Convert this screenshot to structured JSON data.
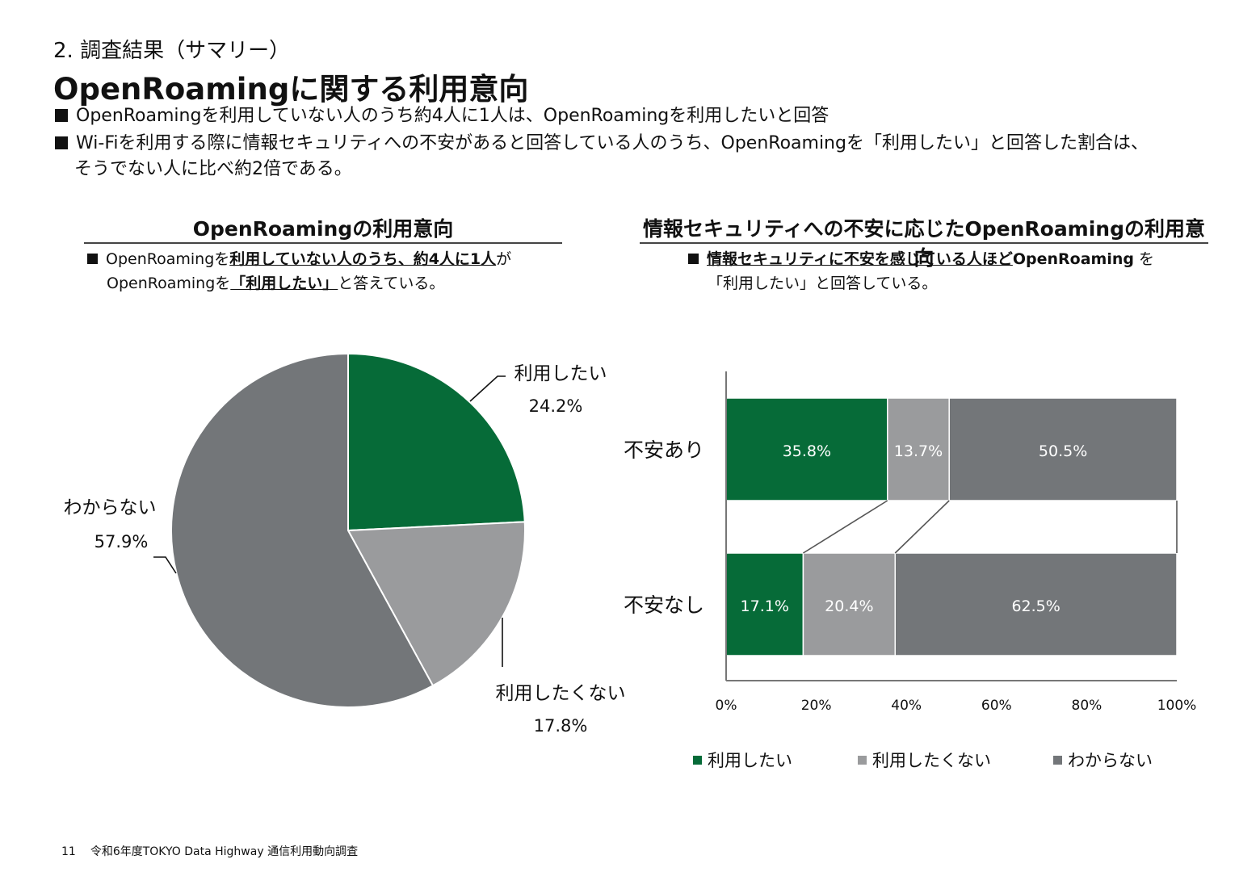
{
  "header": {
    "section": "2. 調査結果（サマリー）",
    "title": "OpenRoamingに関する利用意向",
    "bullets": [
      "OpenRoamingを利用していない人のうち約4人に1人は、OpenRoamingを利用したいと回答",
      "Wi-Fiを利用する際に情報セキュリティへの不安があると回答している人のうち、OpenRoamingを「利用したい」と回答した割合は、",
      "そうでない人に比べ約2倍である。"
    ]
  },
  "left_panel": {
    "title": "OpenRoamingの利用意向",
    "note_line1": {
      "pre": "OpenRoamingを",
      "u": "利用していない人のうち、約4人に1人",
      "post": "が"
    },
    "note_line2": {
      "pre": "OpenRoamingを",
      "u": "「利用したい」",
      "post": "と答えている。"
    }
  },
  "right_panel": {
    "title": "情報セキュリティへの不安に応じたOpenRoamingの利用意向",
    "note_line1": {
      "u": "情報セキュリティに不安を感じている人ほど",
      "bold": "OpenRoaming",
      "post": " を"
    },
    "note_line2": "「利用したい」と回答している。"
  },
  "colors": {
    "want": "#066b38",
    "not_want": "#9a9b9d",
    "unknown": "#737679"
  },
  "chart_data": [
    {
      "type": "pie",
      "categories": [
        "利用したい",
        "利用したくない",
        "わからない"
      ],
      "values": [
        24.2,
        17.8,
        57.9
      ],
      "labels": [
        "24.2%",
        "17.8%",
        "57.9%"
      ]
    },
    {
      "type": "bar",
      "orientation": "horizontal",
      "stacked": true,
      "categories": [
        "不安あり",
        "不安なし"
      ],
      "series": [
        {
          "name": "利用したい",
          "values": [
            35.8,
            17.1
          ],
          "labels": [
            "35.8%",
            "17.1%"
          ]
        },
        {
          "name": "利用したくない",
          "values": [
            13.7,
            20.4
          ],
          "labels": [
            "13.7%",
            "20.4%"
          ]
        },
        {
          "name": "わからない",
          "values": [
            50.5,
            62.5
          ],
          "labels": [
            "50.5%",
            "62.5%"
          ]
        }
      ],
      "xlim": [
        0,
        100
      ],
      "xticks": [
        "0%",
        "20%",
        "40%",
        "60%",
        "80%",
        "100%"
      ],
      "legend": "bottom",
      "grid": false
    }
  ],
  "footer": {
    "page": "11",
    "text": "令和6年度TOKYO Data Highway 通信利用動向調査"
  }
}
